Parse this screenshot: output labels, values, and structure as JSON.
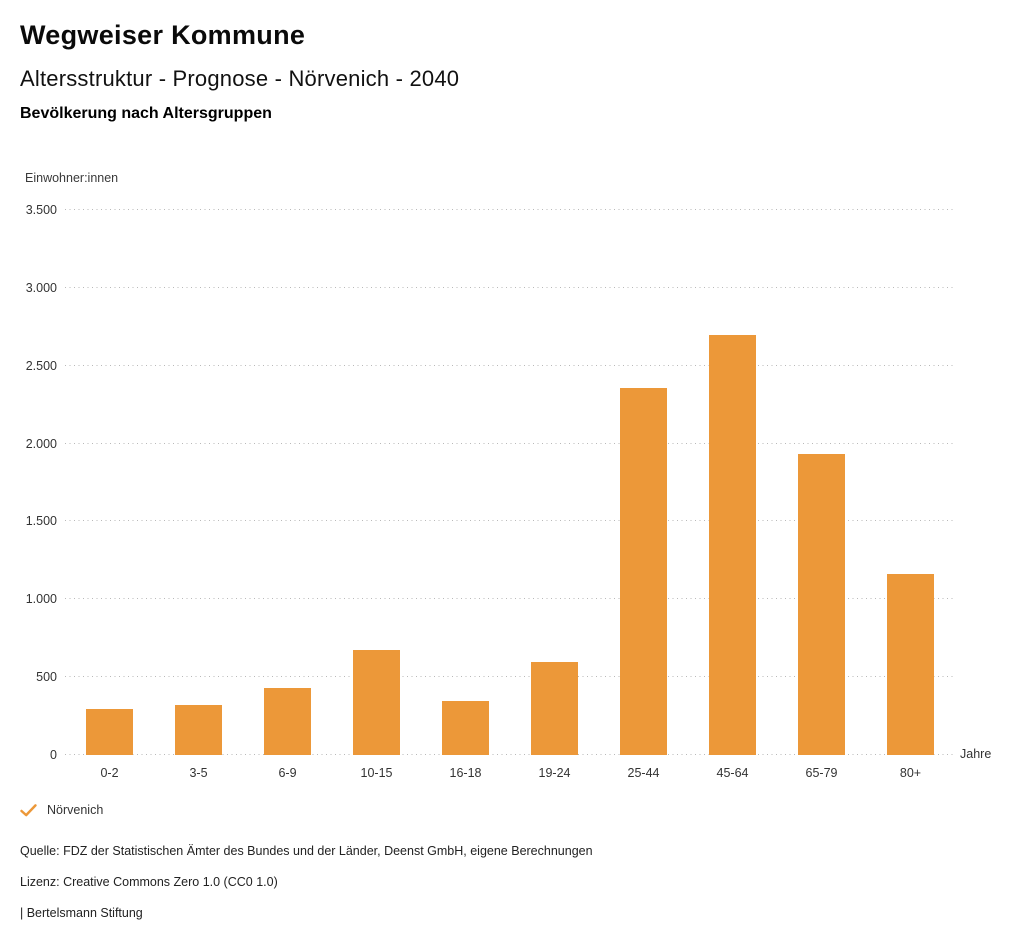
{
  "header": {
    "title": "Wegweiser Kommune",
    "subtitle": "Altersstruktur - Prognose - Nörvenich - 2040",
    "chart_heading": "Bevölkerung nach Altersgruppen"
  },
  "chart": {
    "y_axis_title": "Einwohner:innen",
    "x_axis_title": "Jahre"
  },
  "chart_data": {
    "type": "bar",
    "title": "Bevölkerung nach Altersgruppen",
    "subtitle": "Altersstruktur - Prognose - Nörvenich - 2040",
    "categories": [
      "0-2",
      "3-5",
      "6-9",
      "10-15",
      "16-18",
      "19-24",
      "25-44",
      "45-64",
      "65-79",
      "80+"
    ],
    "values": [
      295,
      320,
      430,
      675,
      345,
      600,
      2355,
      2695,
      1935,
      1160
    ],
    "series_name": "Nörvenich",
    "xlabel": "Jahre",
    "ylabel": "Einwohner:innen",
    "ylim": [
      0,
      3500
    ],
    "ytick_values": [
      0,
      500,
      1000,
      1500,
      2000,
      2500,
      3000,
      3500
    ],
    "ytick_labels": [
      "0",
      "500",
      "1.000",
      "1.500",
      "2.000",
      "2.500",
      "3.000",
      "3.500"
    ],
    "bar_color": "#EC9839",
    "grid": "horizontal-dotted",
    "legend_position": "bottom-left"
  },
  "legend": {
    "items": [
      {
        "label": "Nörvenich",
        "marker": "check",
        "color": "#EC9839"
      }
    ]
  },
  "footer": {
    "source": "Quelle: FDZ der Statistischen Ämter des Bundes und der Länder, Deenst GmbH, eigene Berechnungen",
    "license": "Lizenz: Creative Commons Zero 1.0 (CC0 1.0)",
    "attribution": "| Bertelsmann Stiftung"
  }
}
